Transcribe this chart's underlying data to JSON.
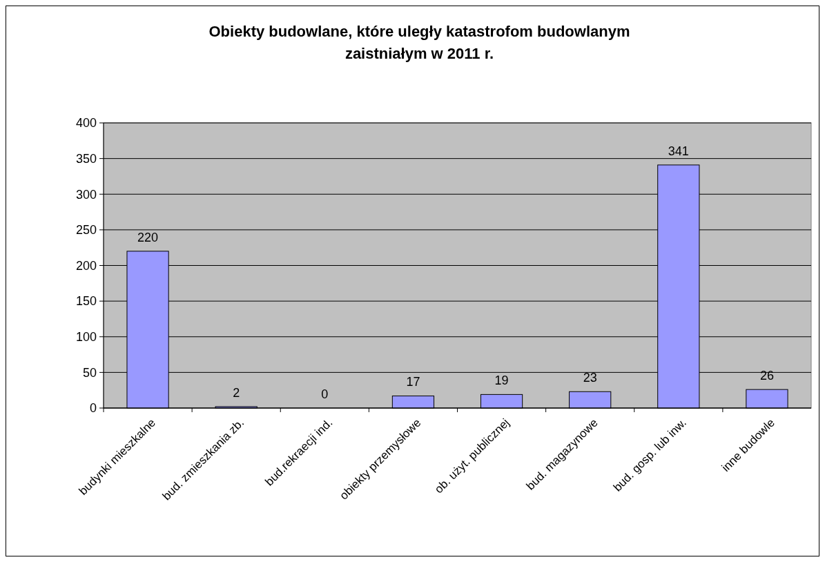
{
  "chart_data": {
    "type": "bar",
    "title": "Obiekty budowlane, które uległy katastrofom budowlanym zaistniałym w 2011 r.",
    "categories": [
      "budynki mieszkalne",
      "bud. zmieszkania zb.",
      "bud.rekraecji ind.",
      "obiekty przemysłowe",
      "ob. użyt. publicznej",
      "bud. magazynowe",
      "bud. gosp. lub inw.",
      "inne budowle"
    ],
    "values": [
      220,
      2,
      0,
      17,
      19,
      23,
      341,
      26
    ],
    "color": "#9999ff",
    "ylim": [
      0,
      400
    ],
    "yticks": [
      0,
      50,
      100,
      150,
      200,
      250,
      300,
      350,
      400
    ],
    "grid": "y",
    "data_labels": true
  }
}
